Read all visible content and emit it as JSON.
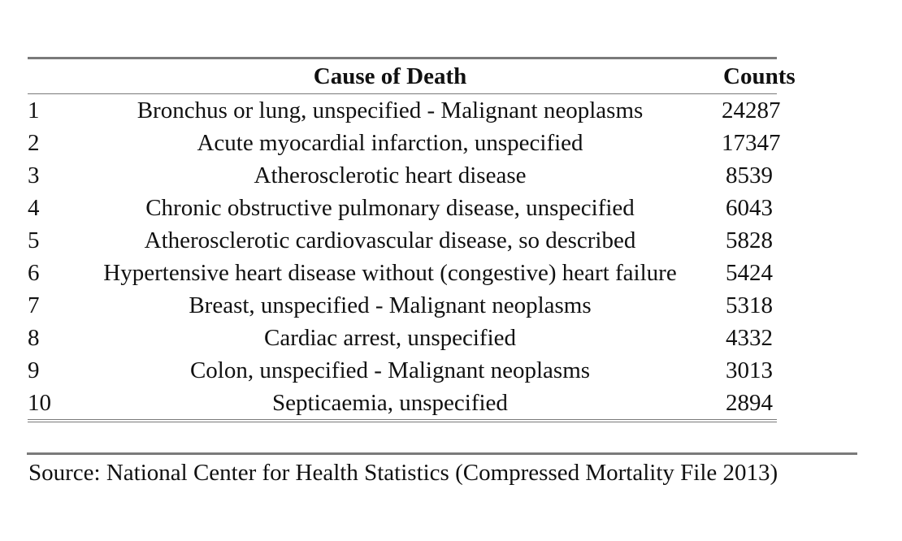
{
  "table": {
    "headers": {
      "index": "",
      "cause": "Cause of Death",
      "counts": "Counts"
    },
    "rows": [
      {
        "rank": "1",
        "cause": "Bronchus or lung, unspecified - Malignant neoplasms",
        "count": "24287"
      },
      {
        "rank": "2",
        "cause": "Acute myocardial infarction, unspecified",
        "count": "17347"
      },
      {
        "rank": "3",
        "cause": "Atherosclerotic heart disease",
        "count": "8539"
      },
      {
        "rank": "4",
        "cause": "Chronic obstructive pulmonary disease, unspecified",
        "count": "6043"
      },
      {
        "rank": "5",
        "cause": "Atherosclerotic cardiovascular disease, so described",
        "count": "5828"
      },
      {
        "rank": "6",
        "cause": "Hypertensive heart disease without (congestive) heart failure",
        "count": "5424"
      },
      {
        "rank": "7",
        "cause": "Breast, unspecified - Malignant neoplasms",
        "count": "5318"
      },
      {
        "rank": "8",
        "cause": "Cardiac arrest, unspecified",
        "count": "4332"
      },
      {
        "rank": "9",
        "cause": "Colon, unspecified - Malignant neoplasms",
        "count": "3013"
      },
      {
        "rank": "10",
        "cause": "Septicaemia, unspecified",
        "count": "2894"
      }
    ]
  },
  "source": "Source: National Center for Health Statistics (Compressed Mortality File 2013)"
}
